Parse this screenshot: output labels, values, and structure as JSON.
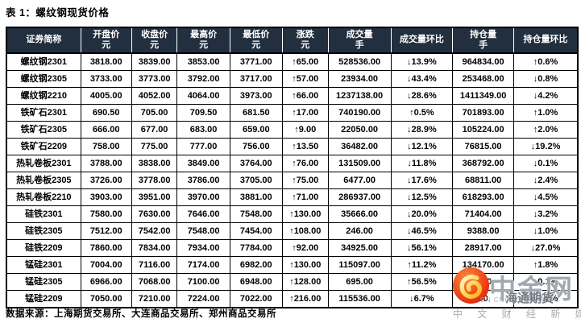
{
  "page": {
    "title": "表 1：螺纹钢现货价格",
    "source_note": "数据来源：上海期货交易所、大连商品交易所、郑州商品交易所"
  },
  "colors": {
    "header_bg": "#222F3E",
    "up_red": "#FF0000",
    "down_green": "#00CE4C",
    "watermark_orange": "#E8401C"
  },
  "table": {
    "up_arrow": "↑",
    "down_arrow": "↓",
    "columns": [
      {
        "title": "证券简称",
        "unit": null
      },
      {
        "title": "开盘价",
        "unit": "元"
      },
      {
        "title": "收盘价",
        "unit": "元"
      },
      {
        "title": "最高价",
        "unit": "元"
      },
      {
        "title": "最低价",
        "unit": "元"
      },
      {
        "title": "涨跌",
        "unit": "元"
      },
      {
        "title": "成交量",
        "unit": "手"
      },
      {
        "title": "成交量环比",
        "unit": null
      },
      {
        "title": "持仓量",
        "unit": "手"
      },
      {
        "title": "持仓量环比",
        "unit": null
      }
    ],
    "rows": [
      {
        "name": "螺纹钢2301",
        "open": "3818.00",
        "close": "3839.00",
        "high": "3853.00",
        "low": "3771.00",
        "change": {
          "dir": "up",
          "value": "65.00"
        },
        "volume": "528536.00",
        "volume_mom": {
          "dir": "down",
          "value": "13.9%"
        },
        "oi": "964834.00",
        "oi_mom": {
          "dir": "up",
          "value": "0.6%"
        }
      },
      {
        "name": "螺纹钢2305",
        "open": "3733.00",
        "close": "3773.00",
        "high": "3792.00",
        "low": "3717.00",
        "change": {
          "dir": "up",
          "value": "57.00"
        },
        "volume": "23934.00",
        "volume_mom": {
          "dir": "down",
          "value": "43.4%"
        },
        "oi": "253468.00",
        "oi_mom": {
          "dir": "down",
          "value": "0.8%"
        }
      },
      {
        "name": "螺纹钢2210",
        "open": "4005.00",
        "close": "4052.00",
        "high": "4064.00",
        "low": "3973.00",
        "change": {
          "dir": "up",
          "value": "66.00"
        },
        "volume": "1237138.00",
        "volume_mom": {
          "dir": "down",
          "value": "28.6%"
        },
        "oi": "1411349.00",
        "oi_mom": {
          "dir": "down",
          "value": "4.2%"
        }
      },
      {
        "name": "铁矿石2301",
        "open": "690.50",
        "close": "705.00",
        "high": "709.50",
        "low": "681.50",
        "change": {
          "dir": "up",
          "value": "17.00"
        },
        "volume": "740190.00",
        "volume_mom": {
          "dir": "up",
          "value": "0.5%"
        },
        "oi": "701893.00",
        "oi_mom": {
          "dir": "up",
          "value": "1.0%"
        }
      },
      {
        "name": "铁矿石2305",
        "open": "666.00",
        "close": "677.00",
        "high": "683.00",
        "low": "659.00",
        "change": {
          "dir": "up",
          "value": "9.00"
        },
        "volume": "22050.00",
        "volume_mom": {
          "dir": "down",
          "value": "28.9%"
        },
        "oi": "105224.00",
        "oi_mom": {
          "dir": "up",
          "value": "2.0%"
        }
      },
      {
        "name": "铁矿石2209",
        "open": "758.00",
        "close": "775.00",
        "high": "777.00",
        "low": "756.00",
        "change": {
          "dir": "up",
          "value": "13.50"
        },
        "volume": "36482.00",
        "volume_mom": {
          "dir": "down",
          "value": "12.1%"
        },
        "oi": "76815.00",
        "oi_mom": {
          "dir": "down",
          "value": "19.2%"
        }
      },
      {
        "name": "热轧卷板2301",
        "open": "3788.00",
        "close": "3838.00",
        "high": "3849.00",
        "low": "3764.00",
        "change": {
          "dir": "up",
          "value": "76.00"
        },
        "volume": "131509.00",
        "volume_mom": {
          "dir": "down",
          "value": "11.8%"
        },
        "oi": "368792.00",
        "oi_mom": {
          "dir": "down",
          "value": "0.1%"
        }
      },
      {
        "name": "热轧卷板2305",
        "open": "3726.00",
        "close": "3778.00",
        "high": "3786.00",
        "low": "3705.00",
        "change": {
          "dir": "up",
          "value": "75.00"
        },
        "volume": "6477.00",
        "volume_mom": {
          "dir": "down",
          "value": "17.6%"
        },
        "oi": "68811.00",
        "oi_mom": {
          "dir": "down",
          "value": "2.4%"
        }
      },
      {
        "name": "热轧卷板2210",
        "open": "3903.00",
        "close": "3951.00",
        "high": "3970.00",
        "low": "3881.00",
        "change": {
          "dir": "up",
          "value": "71.00"
        },
        "volume": "286937.00",
        "volume_mom": {
          "dir": "down",
          "value": "12.5%"
        },
        "oi": "618293.00",
        "oi_mom": {
          "dir": "down",
          "value": "4.5%"
        }
      },
      {
        "name": "硅铁2301",
        "open": "7580.00",
        "close": "7630.00",
        "high": "7646.00",
        "low": "7548.00",
        "change": {
          "dir": "up",
          "value": "130.00"
        },
        "volume": "35666.00",
        "volume_mom": {
          "dir": "down",
          "value": "20.0%"
        },
        "oi": "71404.00",
        "oi_mom": {
          "dir": "down",
          "value": "3.2%"
        }
      },
      {
        "name": "硅铁2305",
        "open": "7512.00",
        "close": "7542.00",
        "high": "7548.00",
        "low": "7454.00",
        "change": {
          "dir": "up",
          "value": "108.00"
        },
        "volume": "246.00",
        "volume_mom": {
          "dir": "down",
          "value": "46.5%"
        },
        "oi": "9388.00",
        "oi_mom": {
          "dir": "down",
          "value": "1.0%"
        }
      },
      {
        "name": "硅铁2209",
        "open": "7860.00",
        "close": "7834.00",
        "high": "7934.00",
        "low": "7784.00",
        "change": {
          "dir": "up",
          "value": "92.00"
        },
        "volume": "34925.00",
        "volume_mom": {
          "dir": "down",
          "value": "56.1%"
        },
        "oi": "28917.00",
        "oi_mom": {
          "dir": "down",
          "value": "27.0%"
        }
      },
      {
        "name": "锰硅2301",
        "open": "7004.00",
        "close": "7116.00",
        "high": "7174.00",
        "low": "6982.00",
        "change": {
          "dir": "up",
          "value": "130.00"
        },
        "volume": "115097.00",
        "volume_mom": {
          "dir": "up",
          "value": "11.2%"
        },
        "oi": "134170.00",
        "oi_mom": {
          "dir": "up",
          "value": "1.8%"
        }
      },
      {
        "name": "锰硅2305",
        "open": "6966.00",
        "close": "7068.00",
        "high": "7100.00",
        "low": "6948.00",
        "change": {
          "dir": "up",
          "value": "128.00"
        },
        "volume": "695.00",
        "volume_mom": {
          "dir": "up",
          "value": "56.5%"
        },
        "oi": "0.00",
        "oi_mom": {
          "dir": "down",
          "value": "0.1%"
        }
      },
      {
        "name": "锰硅2209",
        "open": "7050.00",
        "close": "7210.00",
        "high": "7224.00",
        "low": "7022.00",
        "change": {
          "dir": "up",
          "value": "216.00"
        },
        "volume": "115536.00",
        "volume_mom": {
          "dir": "down",
          "value": "6.7%"
        },
        "oi": "00",
        "oi_mom": {
          "dir": "down",
          "value": "3.0%"
        }
      }
    ]
  },
  "watermark": {
    "brand": "中金网",
    "url": "CN CNGOLD.COM.CN",
    "overlay_text": "海通期货",
    "tagline": "中 文 财 经 新 媒 体"
  }
}
